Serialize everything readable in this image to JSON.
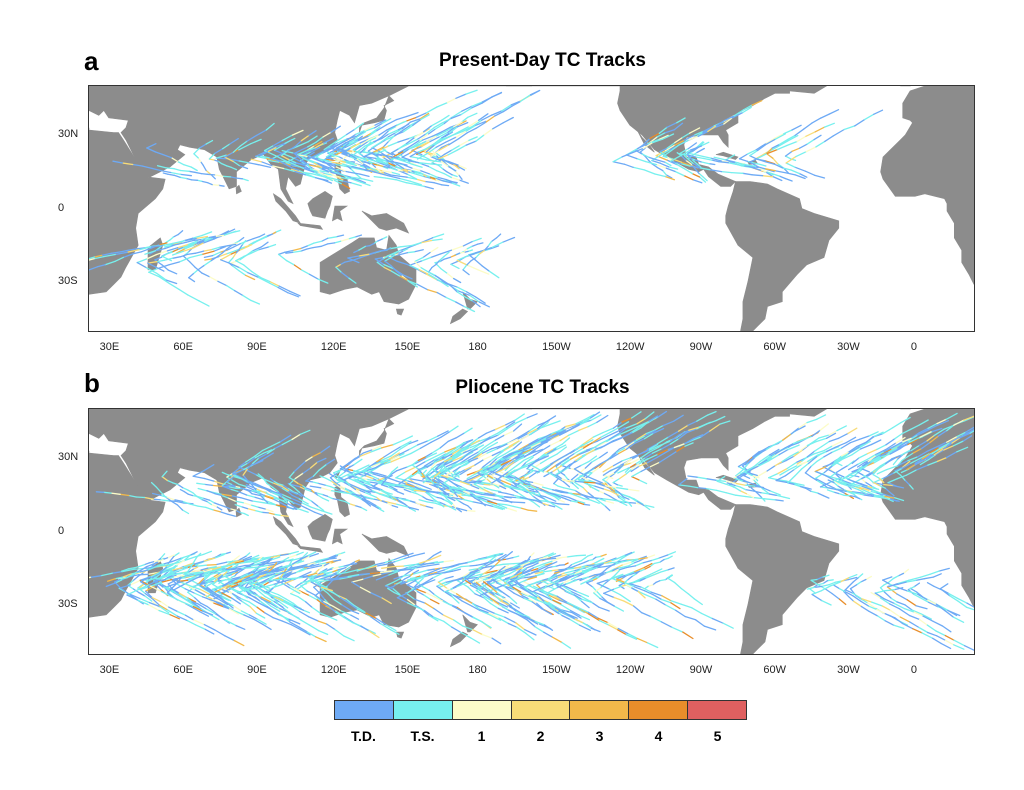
{
  "panels": [
    {
      "letter": "a",
      "title": "Present-Day TC Tracks"
    },
    {
      "letter": "b",
      "title": "Pliocene TC Tracks"
    }
  ],
  "lon_ticks": [
    "30E",
    "60E",
    "90E",
    "120E",
    "150E",
    "180",
    "150W",
    "120W",
    "90W",
    "60W",
    "30W",
    "0"
  ],
  "lat_ticks": [
    "30N",
    "0",
    "30S"
  ],
  "legend": {
    "categories": [
      {
        "label": "T.D.",
        "color": "#6eaaf5"
      },
      {
        "label": "T.S.",
        "color": "#77f0ee"
      },
      {
        "label": "1",
        "color": "#fcfcc8"
      },
      {
        "label": "2",
        "color": "#f8dc78"
      },
      {
        "label": "3",
        "color": "#f2b84a"
      },
      {
        "label": "4",
        "color": "#e88d2a"
      },
      {
        "label": "5",
        "color": "#e06060"
      }
    ]
  },
  "colors": {
    "land": "#8c8c8c",
    "ocean": "#ffffff"
  }
}
